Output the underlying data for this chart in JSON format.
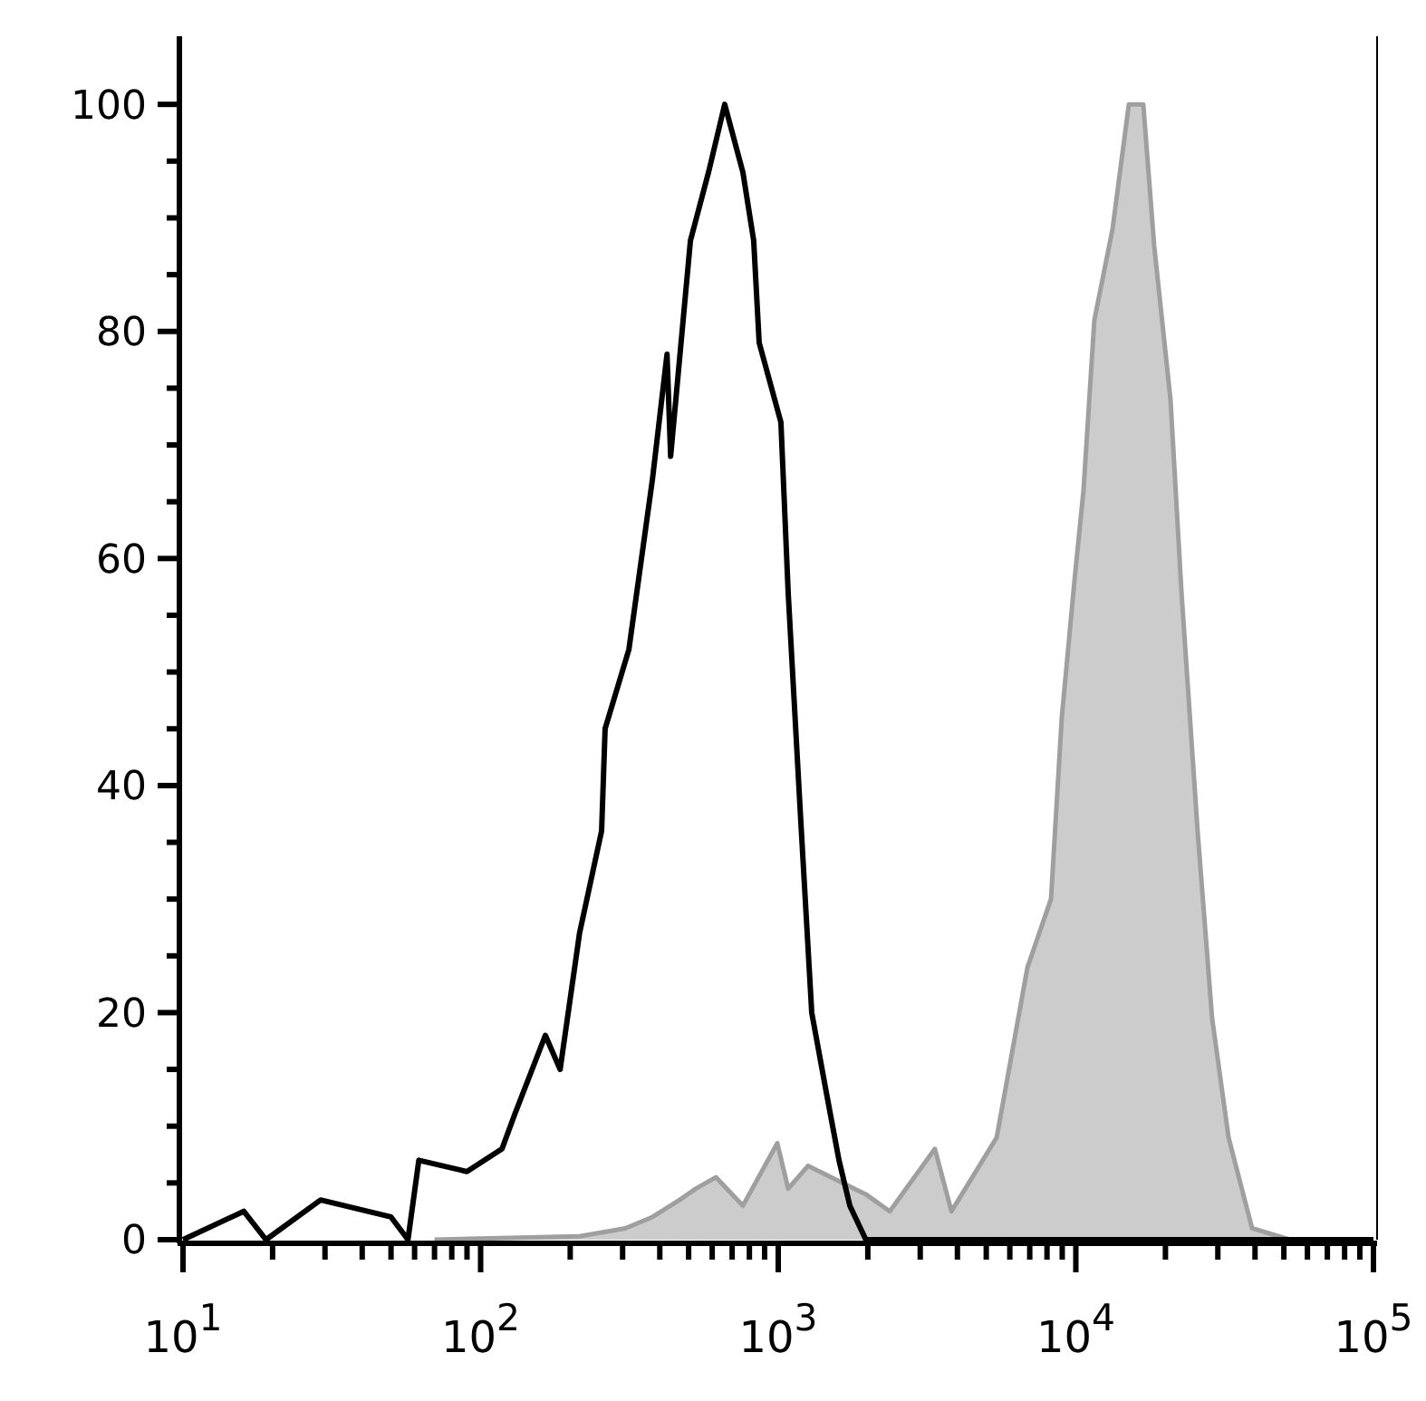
{
  "chart_data": {
    "type": "area",
    "log": "x",
    "xlim": [
      10,
      100000
    ],
    "ylim": [
      0,
      106
    ],
    "xticks": [
      {
        "value": 10,
        "label": "10$^{1}$"
      },
      {
        "value": 20,
        "label": null
      },
      {
        "value": 30,
        "label": null
      },
      {
        "value": 40,
        "label": null
      },
      {
        "value": 50,
        "label": null
      },
      {
        "value": 60,
        "label": null
      },
      {
        "value": 70,
        "label": null
      },
      {
        "value": 80,
        "label": null
      },
      {
        "value": 90,
        "label": null
      },
      {
        "value": 100,
        "label": "10$^{2}$"
      },
      {
        "value": 200,
        "label": null
      },
      {
        "value": 300,
        "label": null
      },
      {
        "value": 400,
        "label": null
      },
      {
        "value": 500,
        "label": null
      },
      {
        "value": 600,
        "label": null
      },
      {
        "value": 700,
        "label": null
      },
      {
        "value": 800,
        "label": null
      },
      {
        "value": 900,
        "label": null
      },
      {
        "value": 1000,
        "label": "10$^{3}$"
      },
      {
        "value": 2000,
        "label": null
      },
      {
        "value": 3000,
        "label": null
      },
      {
        "value": 4000,
        "label": null
      },
      {
        "value": 5000,
        "label": null
      },
      {
        "value": 6000,
        "label": null
      },
      {
        "value": 7000,
        "label": null
      },
      {
        "value": 8000,
        "label": null
      },
      {
        "value": 9000,
        "label": null
      },
      {
        "value": 10000,
        "label": "10$^{4}$"
      },
      {
        "value": 20000,
        "label": null
      },
      {
        "value": 30000,
        "label": null
      },
      {
        "value": 40000,
        "label": null
      },
      {
        "value": 50000,
        "label": null
      },
      {
        "value": 60000,
        "label": null
      },
      {
        "value": 70000,
        "label": null
      },
      {
        "value": 80000,
        "label": null
      },
      {
        "value": 90000,
        "label": null
      },
      {
        "value": 100000,
        "label": "10$^{5}$"
      }
    ],
    "yticks": [
      0,
      {
        "value": 5,
        "label": null
      },
      {
        "value": 10,
        "label": null
      },
      {
        "value": 15,
        "label": null
      },
      20,
      {
        "value": 25,
        "label": null
      },
      {
        "value": 30,
        "label": null
      },
      {
        "value": 35,
        "label": null
      },
      40,
      {
        "value": 45,
        "label": null
      },
      {
        "value": 50,
        "label": null
      },
      {
        "value": 55,
        "label": null
      },
      60,
      {
        "value": 65,
        "label": null
      },
      {
        "value": 70,
        "label": null
      },
      {
        "value": 75,
        "label": null
      },
      80,
      {
        "value": 85,
        "label": null
      },
      {
        "value": 90,
        "label": null
      },
      {
        "value": 95,
        "label": null
      },
      100
    ],
    "grid": false,
    "series": [
      {
        "color": "#cccccc",
        "x": [
          70,
          215,
          306,
          378,
          466,
          529,
          617,
          761,
          993,
          1080,
          1259,
          1970,
          2370,
          3360,
          3820,
          5420,
          6880,
          8250,
          8970,
          9890,
          10610,
          11540,
          13280,
          15070,
          16850,
          18340,
          20800,
          22650,
          25650,
          28700,
          32600,
          39100,
          52500,
          100000
        ],
        "values": [
          0,
          0.3,
          1,
          2,
          3.5,
          4.5,
          5.5,
          3,
          8.5,
          4.5,
          6.5,
          4,
          2.5,
          8,
          2.5,
          9,
          24,
          30,
          46,
          58,
          66,
          81,
          89,
          100,
          100,
          87.5,
          74,
          57,
          36,
          19.5,
          9,
          1,
          0,
          0
        ]
      },
      {
        "type": "line",
        "color": "#000000",
        "x": [
          10,
          16,
          19,
          29,
          50,
          57,
          62,
          90,
          118,
          130,
          165,
          185,
          215,
          255,
          262,
          315,
          378,
          423,
          435,
          507,
          583,
          661,
          761,
          827,
          863,
          1021,
          1080,
          1190,
          1296,
          1450,
          1600,
          1740,
          1970,
          100000
        ],
        "values": [
          0,
          2.5,
          0,
          3.5,
          2,
          0,
          7,
          6,
          8,
          11,
          18,
          15,
          27,
          36,
          45,
          52,
          67,
          78,
          69,
          88,
          94,
          100,
          94,
          88,
          79,
          72,
          57,
          37,
          20,
          13,
          7,
          3,
          0,
          0
        ]
      }
    ]
  }
}
